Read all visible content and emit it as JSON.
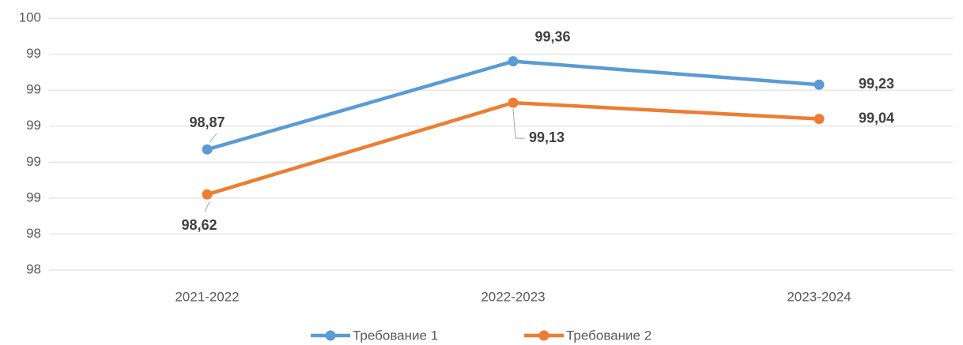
{
  "chart_data": {
    "type": "line",
    "categories": [
      "2021-2022",
      "2022-2023",
      "2023-2024"
    ],
    "series": [
      {
        "name": "Требование 1",
        "color": "#5b9bd5",
        "values": [
          98.87,
          99.36,
          99.23
        ],
        "value_labels": [
          "98,87",
          "99,36",
          "99,23"
        ]
      },
      {
        "name": "Требование 2",
        "color": "#ed7d31",
        "values": [
          98.62,
          99.13,
          99.04
        ],
        "value_labels": [
          "98,62",
          "99,13",
          "99,04"
        ]
      }
    ],
    "ylim": [
      98.2,
      99.6
    ],
    "yticks": [
      {
        "value": 98.2,
        "label": "98"
      },
      {
        "value": 98.4,
        "label": "98"
      },
      {
        "value": 98.6,
        "label": "99"
      },
      {
        "value": 98.8,
        "label": "99"
      },
      {
        "value": 99.0,
        "label": "99"
      },
      {
        "value": 99.2,
        "label": "99"
      },
      {
        "value": 99.4,
        "label": "99"
      },
      {
        "value": 99.6,
        "label": "100"
      }
    ],
    "grid": true,
    "legend": "bottom"
  }
}
